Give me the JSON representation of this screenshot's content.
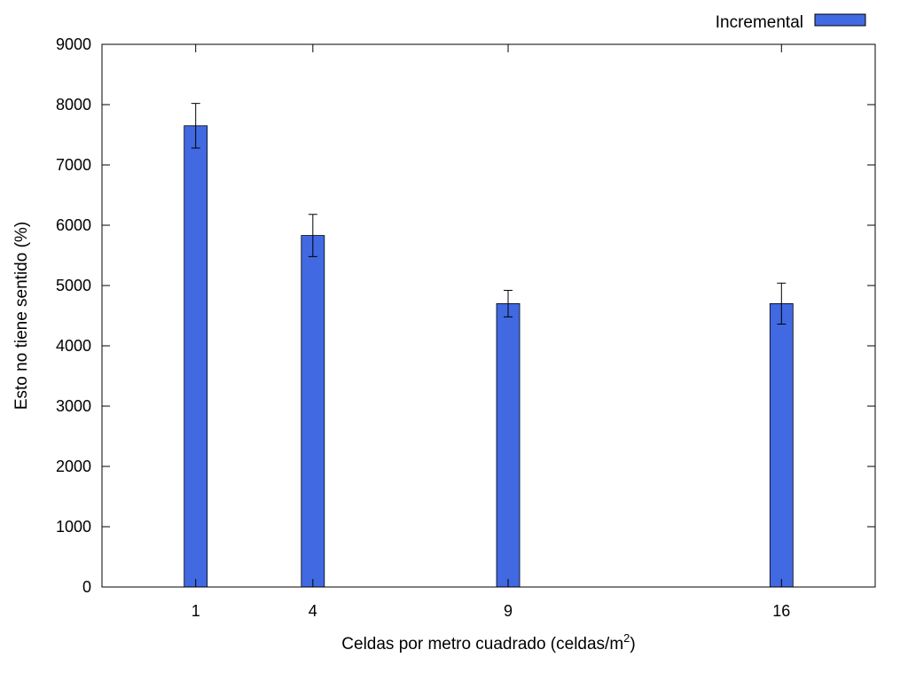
{
  "chart_data": {
    "type": "bar",
    "title": "",
    "xlabel": "Celdas por metro cuadrado (celdas/m",
    "xlabel_superscript": "2",
    "xlabel_suffix": ")",
    "ylabel": "Esto no tiene sentido (%)",
    "x": [
      1,
      4,
      9,
      16
    ],
    "x_tick_labels": [
      "1",
      "4",
      "9",
      "16"
    ],
    "xlim": [
      -1.4,
      18.4
    ],
    "ylim": [
      0,
      9000
    ],
    "y_ticks": [
      0,
      1000,
      2000,
      3000,
      4000,
      5000,
      6000,
      7000,
      8000,
      9000
    ],
    "grid": false,
    "legend_position": "top-right",
    "series": [
      {
        "name": "Incremental",
        "color": "#4169e1",
        "values": [
          7650,
          5830,
          4700,
          4700
        ],
        "error_low": [
          7280,
          5480,
          4480,
          4360
        ],
        "error_high": [
          8020,
          6180,
          4920,
          5040
        ]
      }
    ]
  }
}
